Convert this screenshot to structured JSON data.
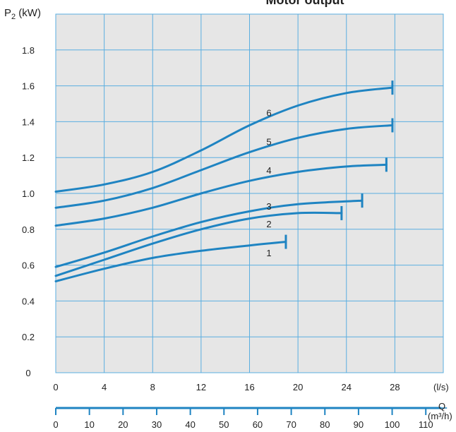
{
  "chart_data": {
    "type": "line",
    "title": "Motor output",
    "ylabel": "P2 (kW)",
    "ylabel_sub": "2",
    "ylabel_prefix": "P",
    "ylabel_suffix": " (kW)",
    "xlabel": "Q",
    "x_unit": "(l/s)",
    "x2_unit": "(m³/h)",
    "xlim": [
      0,
      32
    ],
    "ylim": [
      0,
      2.0
    ],
    "x_ticks": [
      0,
      4,
      8,
      12,
      16,
      20,
      24,
      28
    ],
    "y_ticks": [
      0,
      0.2,
      0.4,
      0.6,
      0.8,
      1.0,
      1.2,
      1.4,
      1.6,
      1.8
    ],
    "y_tick_labels": [
      "0",
      "0.2",
      "0.4",
      "0.6",
      "0.8",
      "1.0",
      "1.2",
      "1.4",
      "1.6",
      "1.8"
    ],
    "x2_ticks": [
      0,
      10,
      20,
      30,
      40,
      50,
      60,
      70,
      80,
      90,
      100,
      110
    ],
    "grid": true,
    "series": [
      {
        "name": "1",
        "x": [
          0,
          4,
          8,
          12,
          16,
          19
        ],
        "y": [
          0.51,
          0.58,
          0.64,
          0.68,
          0.71,
          0.73
        ],
        "end_x": 19.1,
        "label_x": 17.6,
        "label_y": 0.67
      },
      {
        "name": "2",
        "x": [
          0,
          4,
          8,
          12,
          16,
          20,
          23.6
        ],
        "y": [
          0.54,
          0.63,
          0.72,
          0.8,
          0.86,
          0.89,
          0.89
        ],
        "end_x": 23.6,
        "label_x": 17.6,
        "label_y": 0.83
      },
      {
        "name": "3",
        "x": [
          0,
          4,
          8,
          12,
          16,
          20,
          25.3
        ],
        "y": [
          0.59,
          0.67,
          0.76,
          0.84,
          0.9,
          0.94,
          0.96
        ],
        "end_x": 25.3,
        "label_x": 17.6,
        "label_y": 0.93
      },
      {
        "name": "4",
        "x": [
          0,
          4,
          8,
          12,
          16,
          20,
          24,
          27.3
        ],
        "y": [
          0.82,
          0.86,
          0.92,
          1.0,
          1.07,
          1.12,
          1.15,
          1.16
        ],
        "end_x": 27.3,
        "label_x": 17.6,
        "label_y": 1.13
      },
      {
        "name": "5",
        "x": [
          0,
          4,
          8,
          12,
          16,
          20,
          24,
          27.8
        ],
        "y": [
          0.92,
          0.96,
          1.03,
          1.13,
          1.23,
          1.31,
          1.36,
          1.38
        ],
        "end_x": 27.8,
        "label_x": 17.6,
        "label_y": 1.29
      },
      {
        "name": "6",
        "x": [
          0,
          4,
          8,
          12,
          16,
          20,
          24,
          27.8
        ],
        "y": [
          1.01,
          1.05,
          1.12,
          1.24,
          1.38,
          1.49,
          1.56,
          1.59
        ],
        "end_x": 27.8,
        "label_x": 17.6,
        "label_y": 1.45
      }
    ],
    "colors": {
      "plot_bg": "#e6e6e6",
      "grid": "#5aaee0",
      "curve": "#1f84c2",
      "text": "#222222"
    }
  }
}
